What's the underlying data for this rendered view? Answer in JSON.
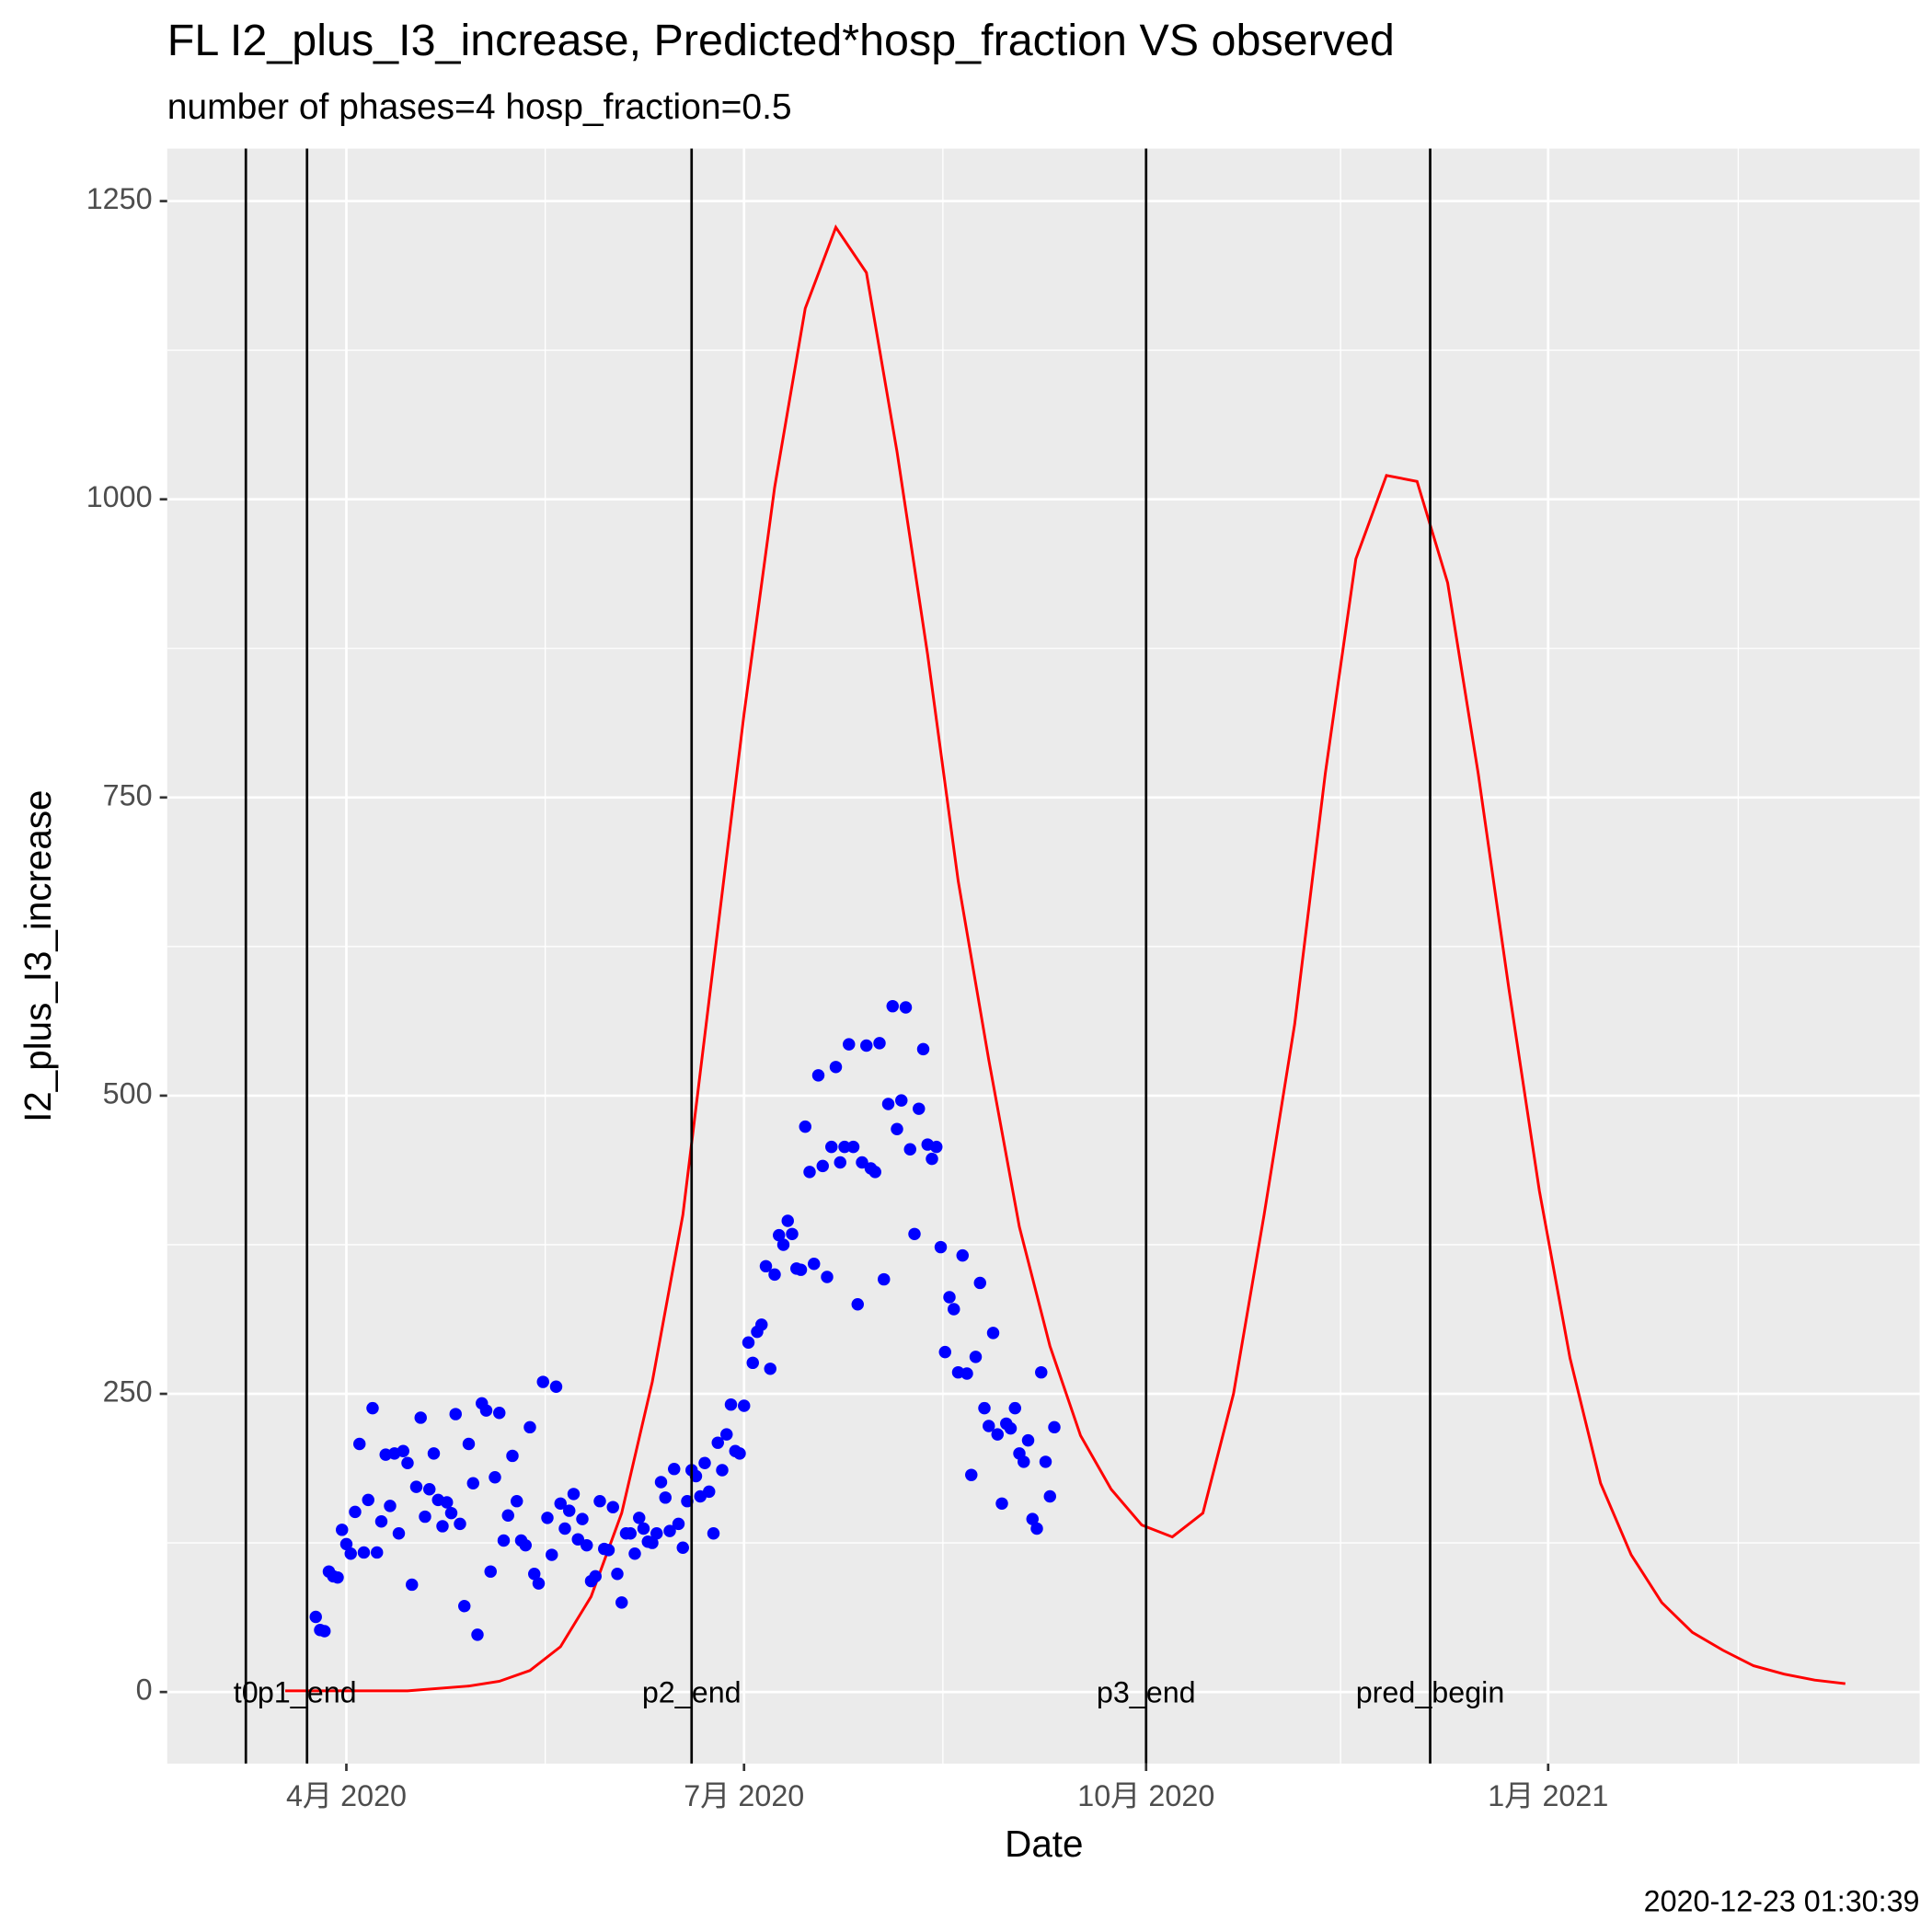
{
  "chart_data": {
    "type": "line",
    "title": "FL I2_plus_I3_increase, Predicted*hosp_fraction VS observed",
    "subtitle": "number of phases=4   hosp_fraction=0.5",
    "x_label": "Date",
    "y_label": "I2_plus_I3_increase",
    "caption": "2020-12-23 01:30:39",
    "xlim": [
      "2020-02-20",
      "2021-03-27"
    ],
    "xticks": [
      {
        "value": "2020-04-01",
        "label": "4月 2020"
      },
      {
        "value": "2020-07-01",
        "label": "7月 2020"
      },
      {
        "value": "2020-10-01",
        "label": "10月 2020"
      },
      {
        "value": "2021-01-01",
        "label": "1月 2021"
      }
    ],
    "ylim": [
      -60,
      1294
    ],
    "yticks": [
      0,
      250,
      500,
      750,
      1000,
      1250
    ],
    "grid": true,
    "vlines": [
      {
        "x": "2020-03-09",
        "label": "t0"
      },
      {
        "x": "2020-03-23",
        "label": "p1_end"
      },
      {
        "x": "2020-06-19",
        "label": "p2_end"
      },
      {
        "x": "2020-10-01",
        "label": "p3_end"
      },
      {
        "x": "2020-12-05",
        "label": "pred_begin"
      }
    ],
    "series": [
      {
        "type": "line",
        "color": "#ff0000",
        "x": [
          "2020-03-18",
          "2020-04-01",
          "2020-04-15",
          "2020-04-29",
          "2020-05-06",
          "2020-05-13",
          "2020-05-20",
          "2020-05-27",
          "2020-06-03",
          "2020-06-10",
          "2020-06-17",
          "2020-06-24",
          "2020-07-01",
          "2020-07-08",
          "2020-07-15",
          "2020-07-22",
          "2020-07-29",
          "2020-08-05",
          "2020-08-12",
          "2020-08-19",
          "2020-08-26",
          "2020-09-02",
          "2020-09-09",
          "2020-09-16",
          "2020-09-23",
          "2020-09-30",
          "2020-10-07",
          "2020-10-14",
          "2020-10-21",
          "2020-10-28",
          "2020-11-04",
          "2020-11-11",
          "2020-11-18",
          "2020-11-25",
          "2020-12-02",
          "2020-12-09",
          "2020-12-16",
          "2020-12-23",
          "2020-12-30",
          "2021-01-06",
          "2021-01-13",
          "2021-01-20",
          "2021-01-27",
          "2021-02-03",
          "2021-02-10",
          "2021-02-17",
          "2021-02-24",
          "2021-03-03",
          "2021-03-10"
        ],
        "values": [
          1,
          1,
          1,
          5,
          9,
          18,
          38,
          80,
          150,
          260,
          400,
          610,
          820,
          1010,
          1160,
          1228,
          1190,
          1040,
          870,
          680,
          530,
          390,
          290,
          215,
          170,
          140,
          130,
          150,
          250,
          400,
          560,
          770,
          950,
          1020,
          1015,
          930,
          770,
          590,
          420,
          280,
          175,
          115,
          75,
          50,
          35,
          22,
          15,
          10,
          7
        ]
      },
      {
        "type": "scatter",
        "color": "#0000ff",
        "x": [
          "2020-03-25",
          "2020-03-26",
          "2020-03-27",
          "2020-03-28",
          "2020-03-29",
          "2020-03-30",
          "2020-03-31",
          "2020-04-01",
          "2020-04-02",
          "2020-04-03",
          "2020-04-04",
          "2020-04-05",
          "2020-04-06",
          "2020-04-07",
          "2020-04-08",
          "2020-04-09",
          "2020-04-10",
          "2020-04-11",
          "2020-04-12",
          "2020-04-13",
          "2020-04-14",
          "2020-04-15",
          "2020-04-16",
          "2020-04-17",
          "2020-04-18",
          "2020-04-19",
          "2020-04-20",
          "2020-04-21",
          "2020-04-22",
          "2020-04-23",
          "2020-04-24",
          "2020-04-25",
          "2020-04-26",
          "2020-04-27",
          "2020-04-28",
          "2020-04-29",
          "2020-04-30",
          "2020-05-01",
          "2020-05-02",
          "2020-05-03",
          "2020-05-04",
          "2020-05-05",
          "2020-05-06",
          "2020-05-07",
          "2020-05-08",
          "2020-05-09",
          "2020-05-10",
          "2020-05-11",
          "2020-05-12",
          "2020-05-13",
          "2020-05-14",
          "2020-05-15",
          "2020-05-16",
          "2020-05-17",
          "2020-05-18",
          "2020-05-19",
          "2020-05-20",
          "2020-05-21",
          "2020-05-22",
          "2020-05-23",
          "2020-05-24",
          "2020-05-25",
          "2020-05-26",
          "2020-05-27",
          "2020-05-28",
          "2020-05-29",
          "2020-05-30",
          "2020-05-31",
          "2020-06-01",
          "2020-06-02",
          "2020-06-03",
          "2020-06-04",
          "2020-06-05",
          "2020-06-06",
          "2020-06-07",
          "2020-06-08",
          "2020-06-09",
          "2020-06-10",
          "2020-06-11",
          "2020-06-12",
          "2020-06-13",
          "2020-06-14",
          "2020-06-15",
          "2020-06-16",
          "2020-06-17",
          "2020-06-18",
          "2020-06-19",
          "2020-06-20",
          "2020-06-21",
          "2020-06-22",
          "2020-06-23",
          "2020-06-24",
          "2020-06-25",
          "2020-06-26",
          "2020-06-27",
          "2020-06-28",
          "2020-06-29",
          "2020-06-30",
          "2020-07-01",
          "2020-07-02",
          "2020-07-03",
          "2020-07-04",
          "2020-07-05",
          "2020-07-06",
          "2020-07-07",
          "2020-07-08",
          "2020-07-09",
          "2020-07-10",
          "2020-07-11",
          "2020-07-12",
          "2020-07-13",
          "2020-07-14",
          "2020-07-15",
          "2020-07-16",
          "2020-07-17",
          "2020-07-18",
          "2020-07-19",
          "2020-07-20",
          "2020-07-21",
          "2020-07-22",
          "2020-07-23",
          "2020-07-24",
          "2020-07-25",
          "2020-07-26",
          "2020-07-27",
          "2020-07-28",
          "2020-07-29",
          "2020-07-30",
          "2020-07-31",
          "2020-08-01",
          "2020-08-02",
          "2020-08-03",
          "2020-08-04",
          "2020-08-05",
          "2020-08-06",
          "2020-08-07",
          "2020-08-08",
          "2020-08-09",
          "2020-08-10",
          "2020-08-11",
          "2020-08-12",
          "2020-08-13",
          "2020-08-14",
          "2020-08-15",
          "2020-08-16",
          "2020-08-17",
          "2020-08-18",
          "2020-08-19",
          "2020-08-20",
          "2020-08-21",
          "2020-08-22",
          "2020-08-23",
          "2020-08-24",
          "2020-08-25",
          "2020-08-26",
          "2020-08-27",
          "2020-08-28",
          "2020-08-29",
          "2020-08-30",
          "2020-08-31",
          "2020-09-01",
          "2020-09-02",
          "2020-09-03",
          "2020-09-04",
          "2020-09-05",
          "2020-09-06",
          "2020-09-07",
          "2020-09-08",
          "2020-09-09",
          "2020-09-10"
        ],
        "values": [
          63,
          52,
          51,
          101,
          97,
          96,
          136,
          124,
          116,
          151,
          208,
          117,
          161,
          238,
          117,
          143,
          199,
          156,
          200,
          133,
          202,
          192,
          90,
          172,
          230,
          147,
          170,
          200,
          161,
          139,
          159,
          150,
          233,
          141,
          72,
          208,
          175,
          48,
          242,
          236,
          101,
          180,
          234,
          127,
          148,
          198,
          160,
          127,
          123,
          222,
          99,
          91,
          260,
          146,
          115,
          256,
          158,
          137,
          152,
          166,
          128,
          145,
          123,
          93,
          97,
          160,
          120,
          119,
          155,
          99,
          75,
          133,
          133,
          116,
          146,
          137,
          126,
          125,
          133,
          176,
          163,
          135,
          187,
          141,
          121,
          160,
          186,
          181,
          164,
          192,
          168,
          133,
          209,
          186,
          216,
          241,
          202,
          200,
          240,
          293,
          276,
          302,
          308,
          357,
          271,
          350,
          383,
          375,
          395,
          384,
          355,
          354,
          474,
          436,
          359,
          517,
          441,
          348,
          457,
          524,
          444,
          457,
          543,
          457,
          325,
          444,
          542,
          439,
          436,
          544,
          346,
          493,
          575,
          472,
          496,
          574,
          455,
          384,
          489,
          539,
          459,
          447,
          457,
          373,
          285,
          331,
          321,
          268,
          366,
          267,
          182,
          281,
          343,
          238,
          223,
          301,
          216,
          158,
          225,
          221,
          238,
          200,
          193,
          211,
          145,
          137,
          268,
          193,
          164,
          222
        ]
      }
    ]
  }
}
